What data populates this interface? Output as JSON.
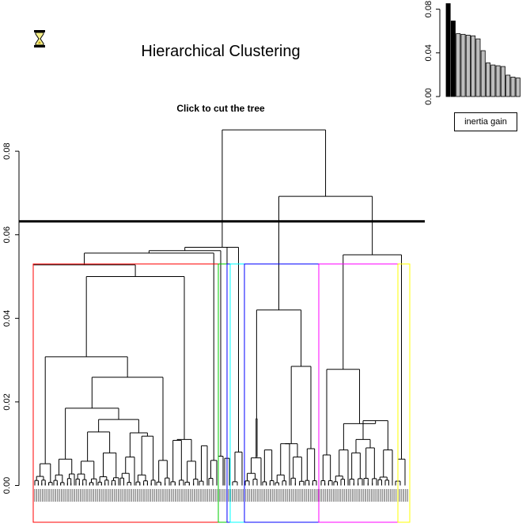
{
  "page": {
    "title": "Hierarchical Clustering",
    "subtitle": "Click to cut the tree",
    "legend_label": "inertia gain"
  },
  "icons": {
    "busy": "hourglass-icon"
  },
  "chart_data": [
    {
      "type": "dendrogram",
      "title": "Click to cut the tree",
      "ylim": [
        0,
        0.09
      ],
      "y_ticks": [
        0.0,
        0.02,
        0.04,
        0.06,
        0.08
      ],
      "y_tick_labels": [
        "0.00",
        "0.02",
        "0.04",
        "0.06",
        "0.08"
      ],
      "cut_height": 0.0632,
      "n_leaves": 300,
      "merge_heights": {
        "root": 0.0851,
        "right_cluster": 0.0692,
        "left_cluster": 0.057,
        "right_inner": 0.0552,
        "left_cluster_a": 0.0562,
        "left_cluster_b": 0.0556,
        "left_main": 0.0528,
        "left_sub": 0.05,
        "mid_cluster": 0.042,
        "right_sub": 0.0278,
        "left_low_1": 0.0308,
        "left_low_2": 0.0259
      },
      "clusters": [
        {
          "name": "1",
          "color": "#ff0000"
        },
        {
          "name": "2",
          "color": "#00cd00"
        },
        {
          "name": "3",
          "color": "#0000ff"
        },
        {
          "name": "4",
          "color": "#00ffff"
        },
        {
          "name": "5",
          "color": "#0000ff"
        },
        {
          "name": "6",
          "color": "#ff00ff"
        },
        {
          "name": "7",
          "color": "#ffff00"
        }
      ]
    },
    {
      "type": "bar",
      "series_label": "inertia gain",
      "ylim": [
        0,
        0.09
      ],
      "y_ticks": [
        0.0,
        0.04,
        0.08
      ],
      "y_tick_labels": [
        "0.00",
        "0.04",
        "0.08"
      ],
      "values": [
        0.0851,
        0.0692,
        0.0576,
        0.057,
        0.0562,
        0.0556,
        0.0528,
        0.042,
        0.0308,
        0.0289,
        0.0282,
        0.0275,
        0.0196,
        0.0178,
        0.017
      ],
      "highlighted_count": 2,
      "highlight_color": "#000000",
      "bar_color": "#bebebe"
    }
  ]
}
